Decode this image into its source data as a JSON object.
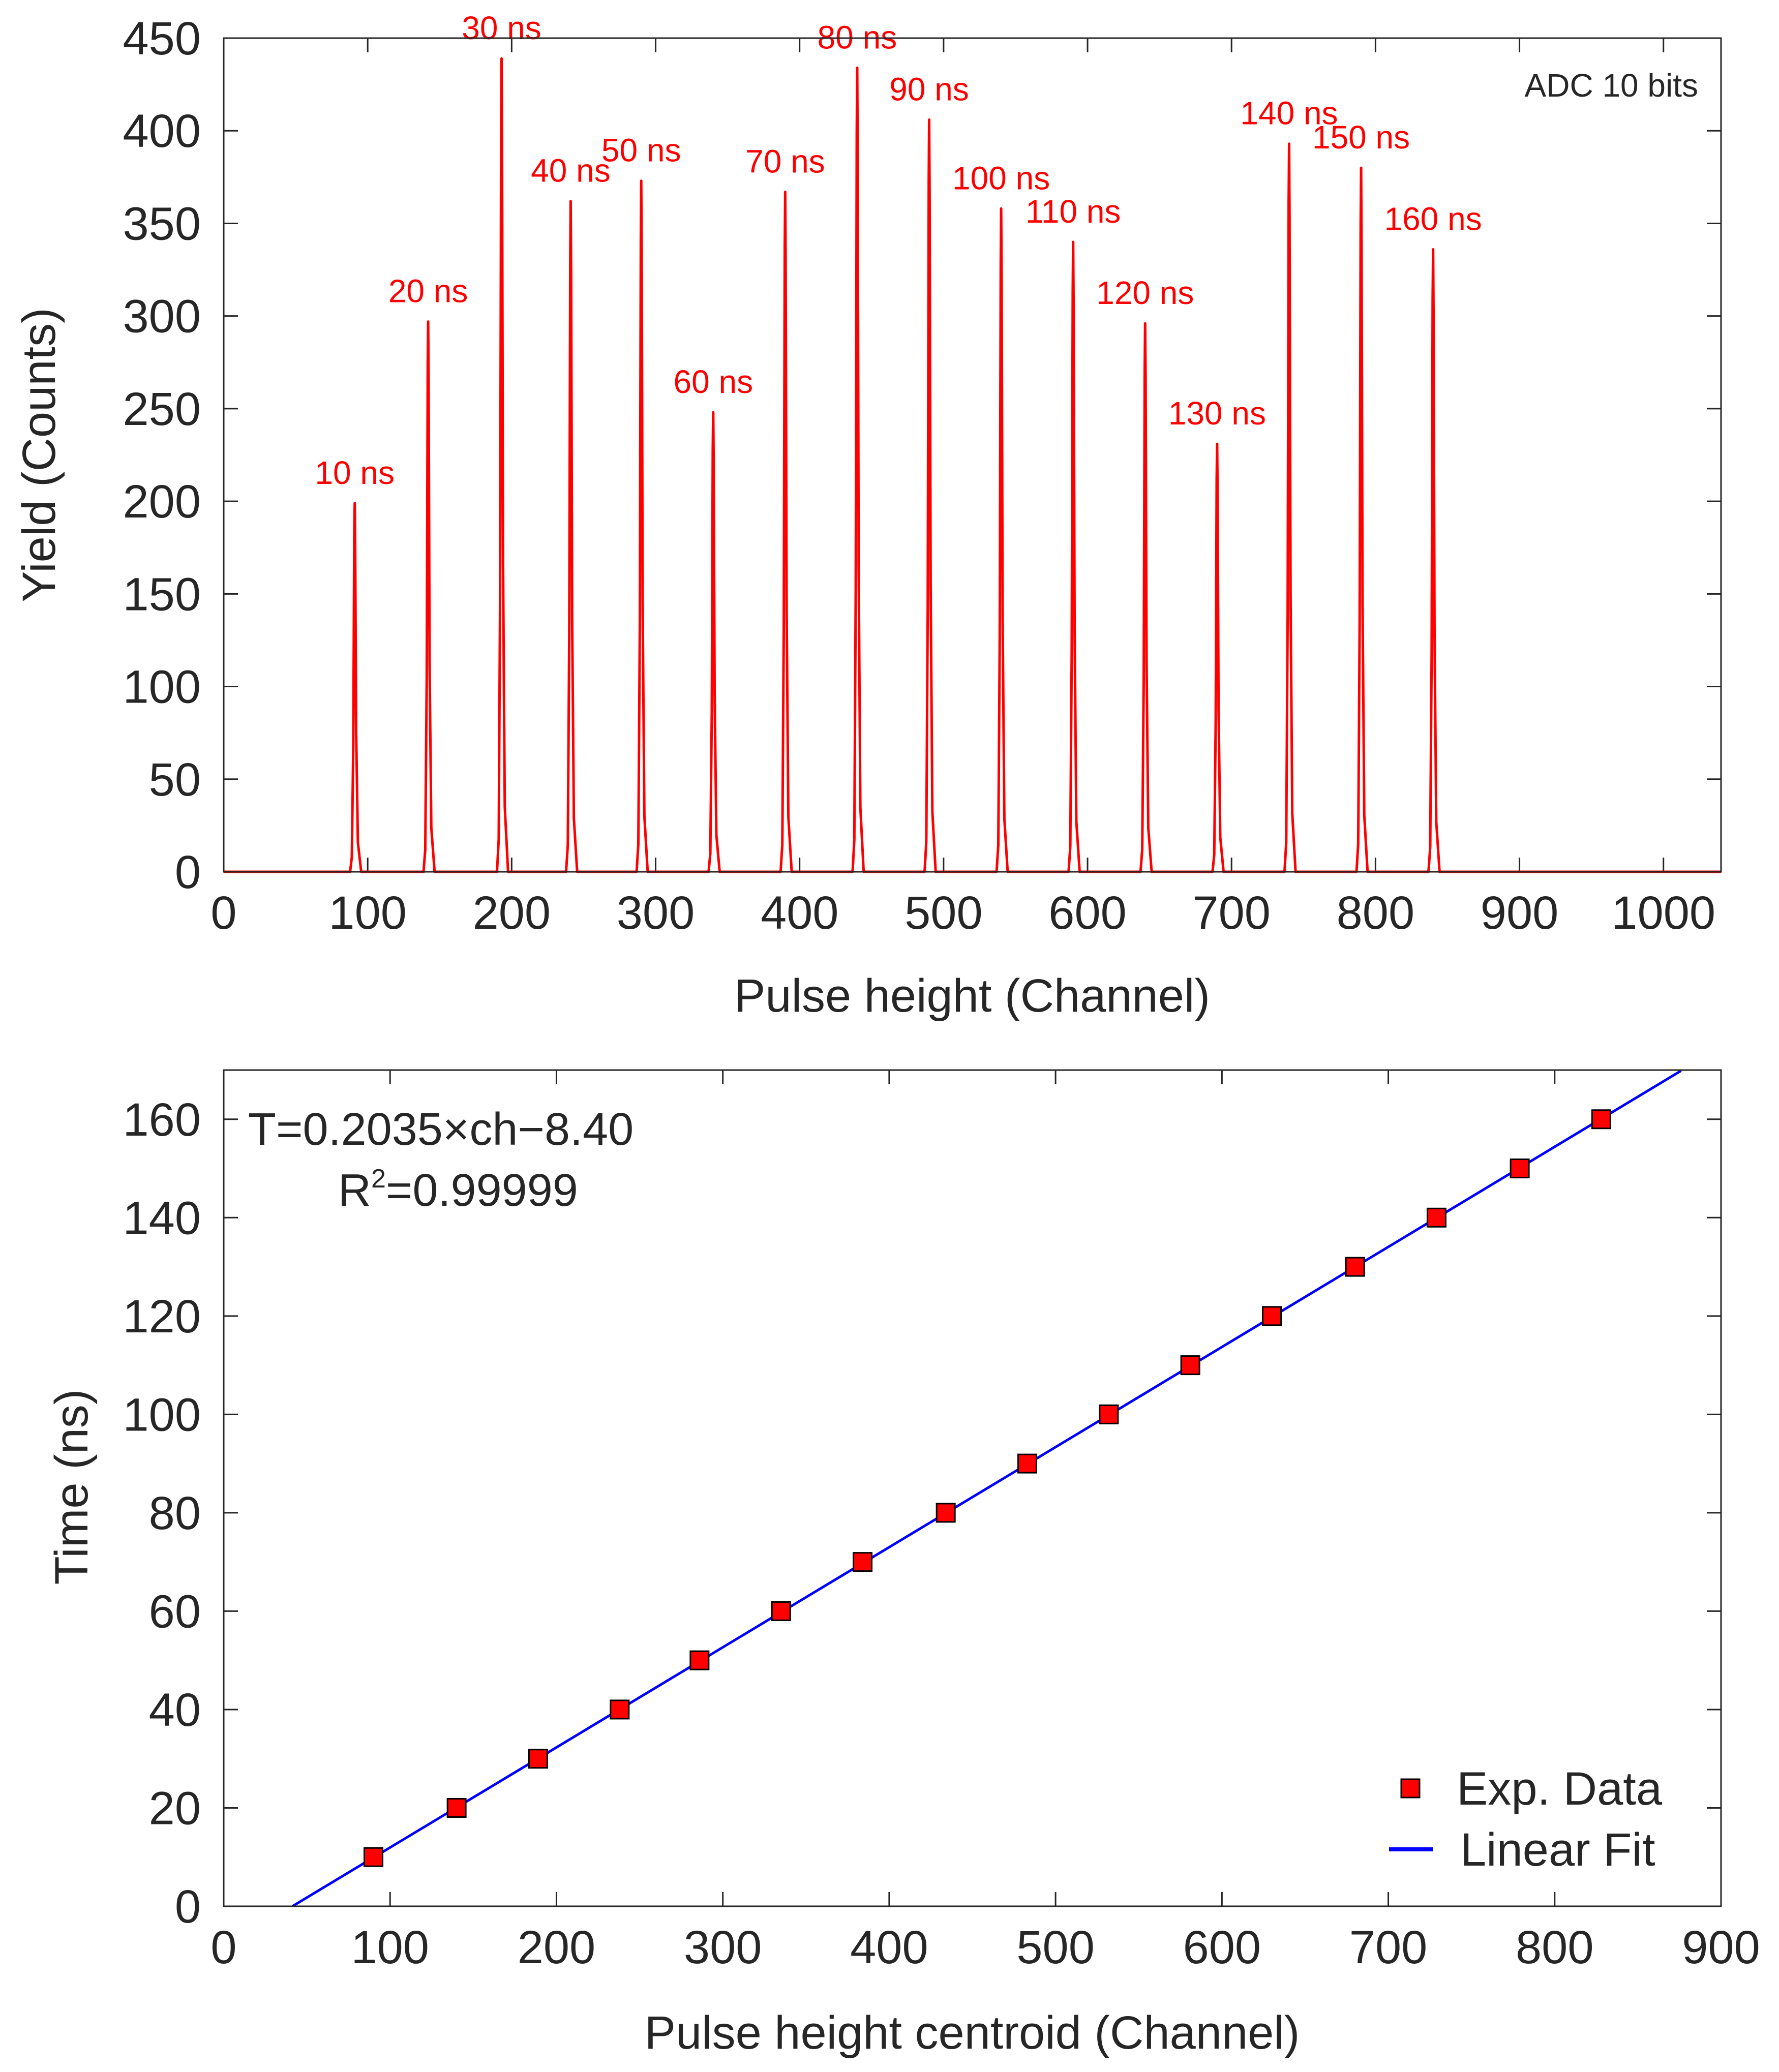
{
  "chart_data": [
    {
      "type": "line",
      "title": "",
      "xlabel": "Pulse height (Channel)",
      "ylabel": "Yield (Counts)",
      "xlim": [
        0,
        1040
      ],
      "ylim": [
        0,
        450
      ],
      "xticks": [
        0,
        100,
        200,
        300,
        400,
        500,
        600,
        700,
        800,
        900,
        1000
      ],
      "yticks": [
        0,
        50,
        100,
        150,
        200,
        250,
        300,
        350,
        400,
        450
      ],
      "grid": false,
      "annotation": "ADC 10 bits",
      "series_color": "#ff0000",
      "peaks": [
        {
          "label": "10 ns",
          "channel": 91,
          "counts": 199
        },
        {
          "label": "20 ns",
          "channel": 142,
          "counts": 297
        },
        {
          "label": "30 ns",
          "channel": 193,
          "counts": 439
        },
        {
          "label": "40 ns",
          "channel": 241,
          "counts": 362
        },
        {
          "label": "50 ns",
          "channel": 290,
          "counts": 373
        },
        {
          "label": "60 ns",
          "channel": 340,
          "counts": 248
        },
        {
          "label": "70 ns",
          "channel": 390,
          "counts": 367
        },
        {
          "label": "80 ns",
          "channel": 440,
          "counts": 434
        },
        {
          "label": "90 ns",
          "channel": 490,
          "counts": 406
        },
        {
          "label": "100 ns",
          "channel": 540,
          "counts": 358
        },
        {
          "label": "110 ns",
          "channel": 590,
          "counts": 340
        },
        {
          "label": "120 ns",
          "channel": 640,
          "counts": 296
        },
        {
          "label": "130 ns",
          "channel": 690,
          "counts": 231
        },
        {
          "label": "140 ns",
          "channel": 740,
          "counts": 393
        },
        {
          "label": "150 ns",
          "channel": 790,
          "counts": 380
        },
        {
          "label": "160 ns",
          "channel": 840,
          "counts": 336
        }
      ]
    },
    {
      "type": "scatter",
      "title": "",
      "xlabel": "Pulse height centroid (Channel)",
      "ylabel": "Time (ns)",
      "xlim": [
        0,
        900
      ],
      "ylim": [
        0,
        170
      ],
      "xticks": [
        0,
        100,
        200,
        300,
        400,
        500,
        600,
        700,
        800,
        900
      ],
      "yticks": [
        0,
        20,
        40,
        60,
        80,
        100,
        120,
        140,
        160
      ],
      "grid": false,
      "legend_position": "bottom-right",
      "equation": "T=0.2035×ch−8.40",
      "r2_label": "R",
      "r2_sup": "2",
      "r2_value": "=0.99999",
      "series": [
        {
          "name": "Exp. Data",
          "marker": "square",
          "color": "#ff0000",
          "x": [
            90,
            140,
            189,
            238,
            286,
            335,
            384,
            434,
            483,
            532,
            581,
            630,
            680,
            729,
            779,
            828
          ],
          "y": [
            10,
            20,
            30,
            40,
            50,
            60,
            70,
            80,
            90,
            100,
            110,
            120,
            130,
            140,
            150,
            160
          ]
        },
        {
          "name": "Linear Fit",
          "marker": "line",
          "color": "#0000ff",
          "slope": 0.2035,
          "intercept": -8.4,
          "x_range": [
            41.3,
            876
          ]
        }
      ]
    }
  ]
}
